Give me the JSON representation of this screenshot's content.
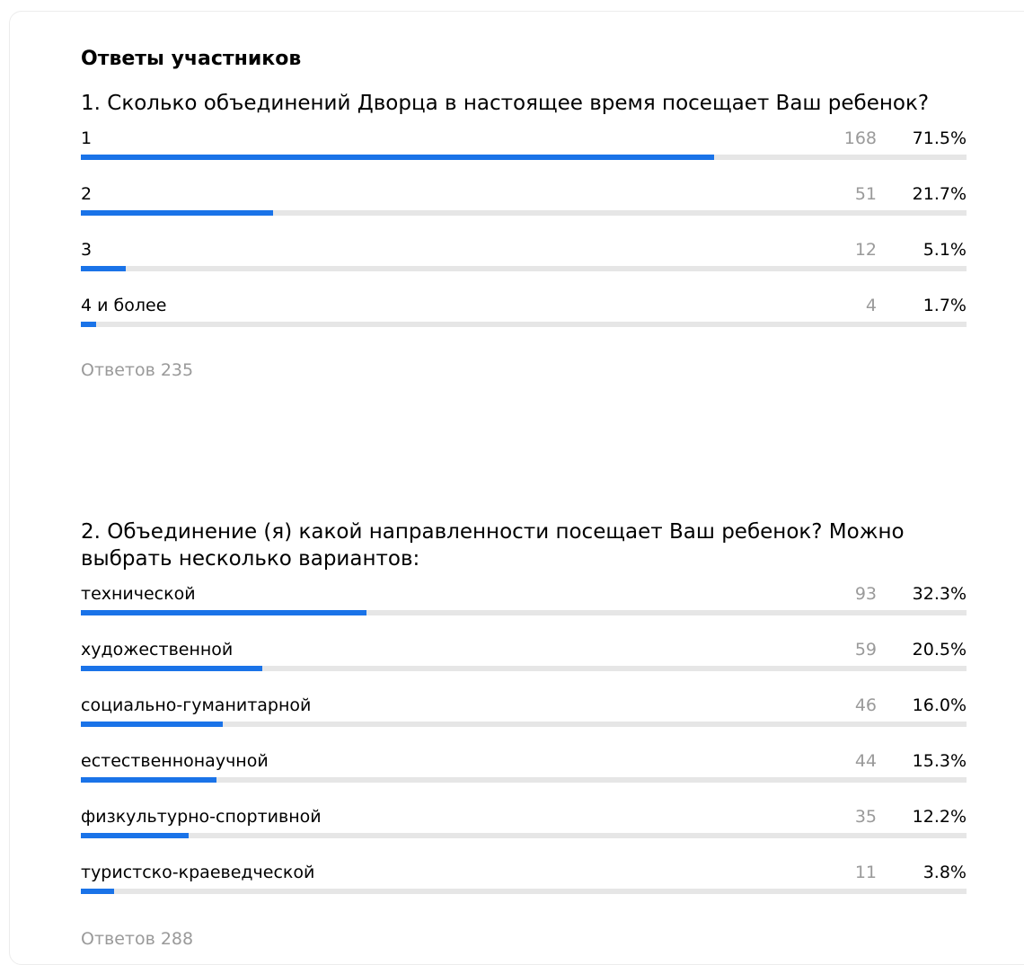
{
  "section_title": "Ответы участников",
  "questions": [
    {
      "text": "1. Сколько объединений Дворца в настоящее время посещает Ваш ребенок?",
      "options": [
        {
          "label": "1",
          "count": "168",
          "percent": "71.5%",
          "fraction": 0.715
        },
        {
          "label": "2",
          "count": "51",
          "percent": "21.7%",
          "fraction": 0.217
        },
        {
          "label": "3",
          "count": "12",
          "percent": "5.1%",
          "fraction": 0.051
        },
        {
          "label": "4 и более",
          "count": "4",
          "percent": "1.7%",
          "fraction": 0.017
        }
      ],
      "answers_label": "Ответов 235"
    },
    {
      "text": "2. Объединение (я) какой направленности посещает Ваш ребенок? Можно выбрать несколько вариантов:",
      "options": [
        {
          "label": "технической",
          "count": "93",
          "percent": "32.3%",
          "fraction": 0.323
        },
        {
          "label": "художественной",
          "count": "59",
          "percent": "20.5%",
          "fraction": 0.205
        },
        {
          "label": "социально-гуманитарной",
          "count": "46",
          "percent": "16.0%",
          "fraction": 0.16
        },
        {
          "label": "естественнонаучной",
          "count": "44",
          "percent": "15.3%",
          "fraction": 0.153
        },
        {
          "label": "физкультурно-спортивной",
          "count": "35",
          "percent": "12.2%",
          "fraction": 0.122
        },
        {
          "label": "туристско-краеведческой",
          "count": "11",
          "percent": "3.8%",
          "fraction": 0.038
        }
      ],
      "answers_label": "Ответов 288"
    }
  ],
  "colors": {
    "bar_fill": "#1a73e8",
    "bar_track": "#e6e6e6",
    "muted_text": "#9a9a9a"
  }
}
